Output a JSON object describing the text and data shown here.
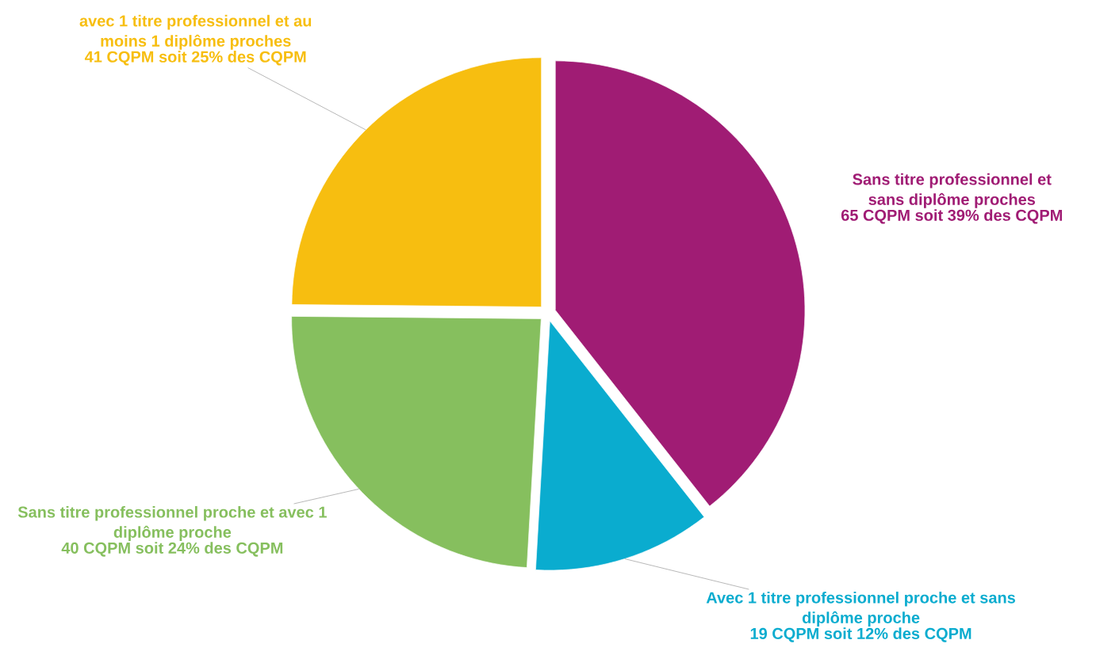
{
  "chart_data": {
    "type": "pie",
    "categories": [
      "Sans titre professionnel et sans diplôme proches",
      "Avec 1 titre professionnel proche et sans diplôme proche",
      "Sans  titre professionnel proche et avec 1 diplôme proche",
      "avec 1 titre professionnel et au moins 1 diplôme proches"
    ],
    "values": [
      65,
      19,
      40,
      41
    ],
    "value_labels": [
      "65 CQPM soit 39% des CQPM",
      "19 CQPM soit 12% des CQPM",
      "40 CQPM soit 24% des CQPM",
      "41 CQPM soit 25% des CQPM"
    ],
    "colors": [
      "#a01c74",
      "#0aaccf",
      "#86bf5e",
      "#f7be10"
    ]
  }
}
